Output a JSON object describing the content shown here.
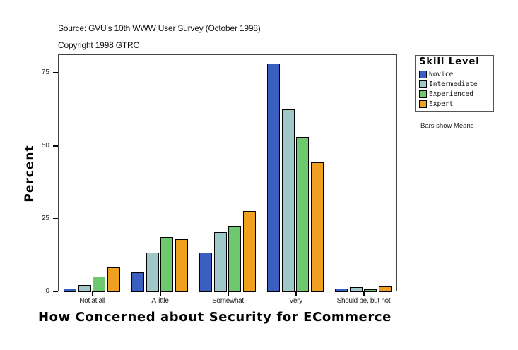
{
  "header": {
    "source": "Source: GVU's 10th WWW User Survey (October 1998)",
    "copyright": "Copyright 1998 GTRC"
  },
  "legend": {
    "title": "Skill Level",
    "items": [
      {
        "label": "Novice",
        "color": "#3a5fc0"
      },
      {
        "label": "Intermediate",
        "color": "#9fc8c8"
      },
      {
        "label": "Experienced",
        "color": "#6ec86e"
      },
      {
        "label": "Expert",
        "color": "#f0a020"
      }
    ]
  },
  "note": "Bars show Means",
  "chart_data": {
    "type": "bar",
    "title": "",
    "xlabel": "How Concerned about Security for ECommerce",
    "ylabel": "Percent",
    "ylim": [
      0,
      81
    ],
    "yticks": [
      0,
      25,
      50,
      75
    ],
    "grid": false,
    "legend_position": "right",
    "legend_title": "Skill Level",
    "categories": [
      "Not at all",
      "A little",
      "Somewhat",
      "Very",
      "Should be, but not"
    ],
    "series": [
      {
        "name": "Novice",
        "color": "#3a5fc0",
        "values": [
          1.0,
          6.5,
          13.4,
          78.1,
          1.0
        ]
      },
      {
        "name": "Intermediate",
        "color": "#9fc8c8",
        "values": [
          2.2,
          13.2,
          20.3,
          62.5,
          1.4
        ]
      },
      {
        "name": "Experienced",
        "color": "#6ec86e",
        "values": [
          5.0,
          18.6,
          22.4,
          53.1,
          0.5
        ]
      },
      {
        "name": "Expert",
        "color": "#f0a020",
        "values": [
          8.2,
          17.8,
          27.5,
          44.4,
          1.6
        ]
      }
    ],
    "annotations": [
      "Bars show Means"
    ]
  }
}
